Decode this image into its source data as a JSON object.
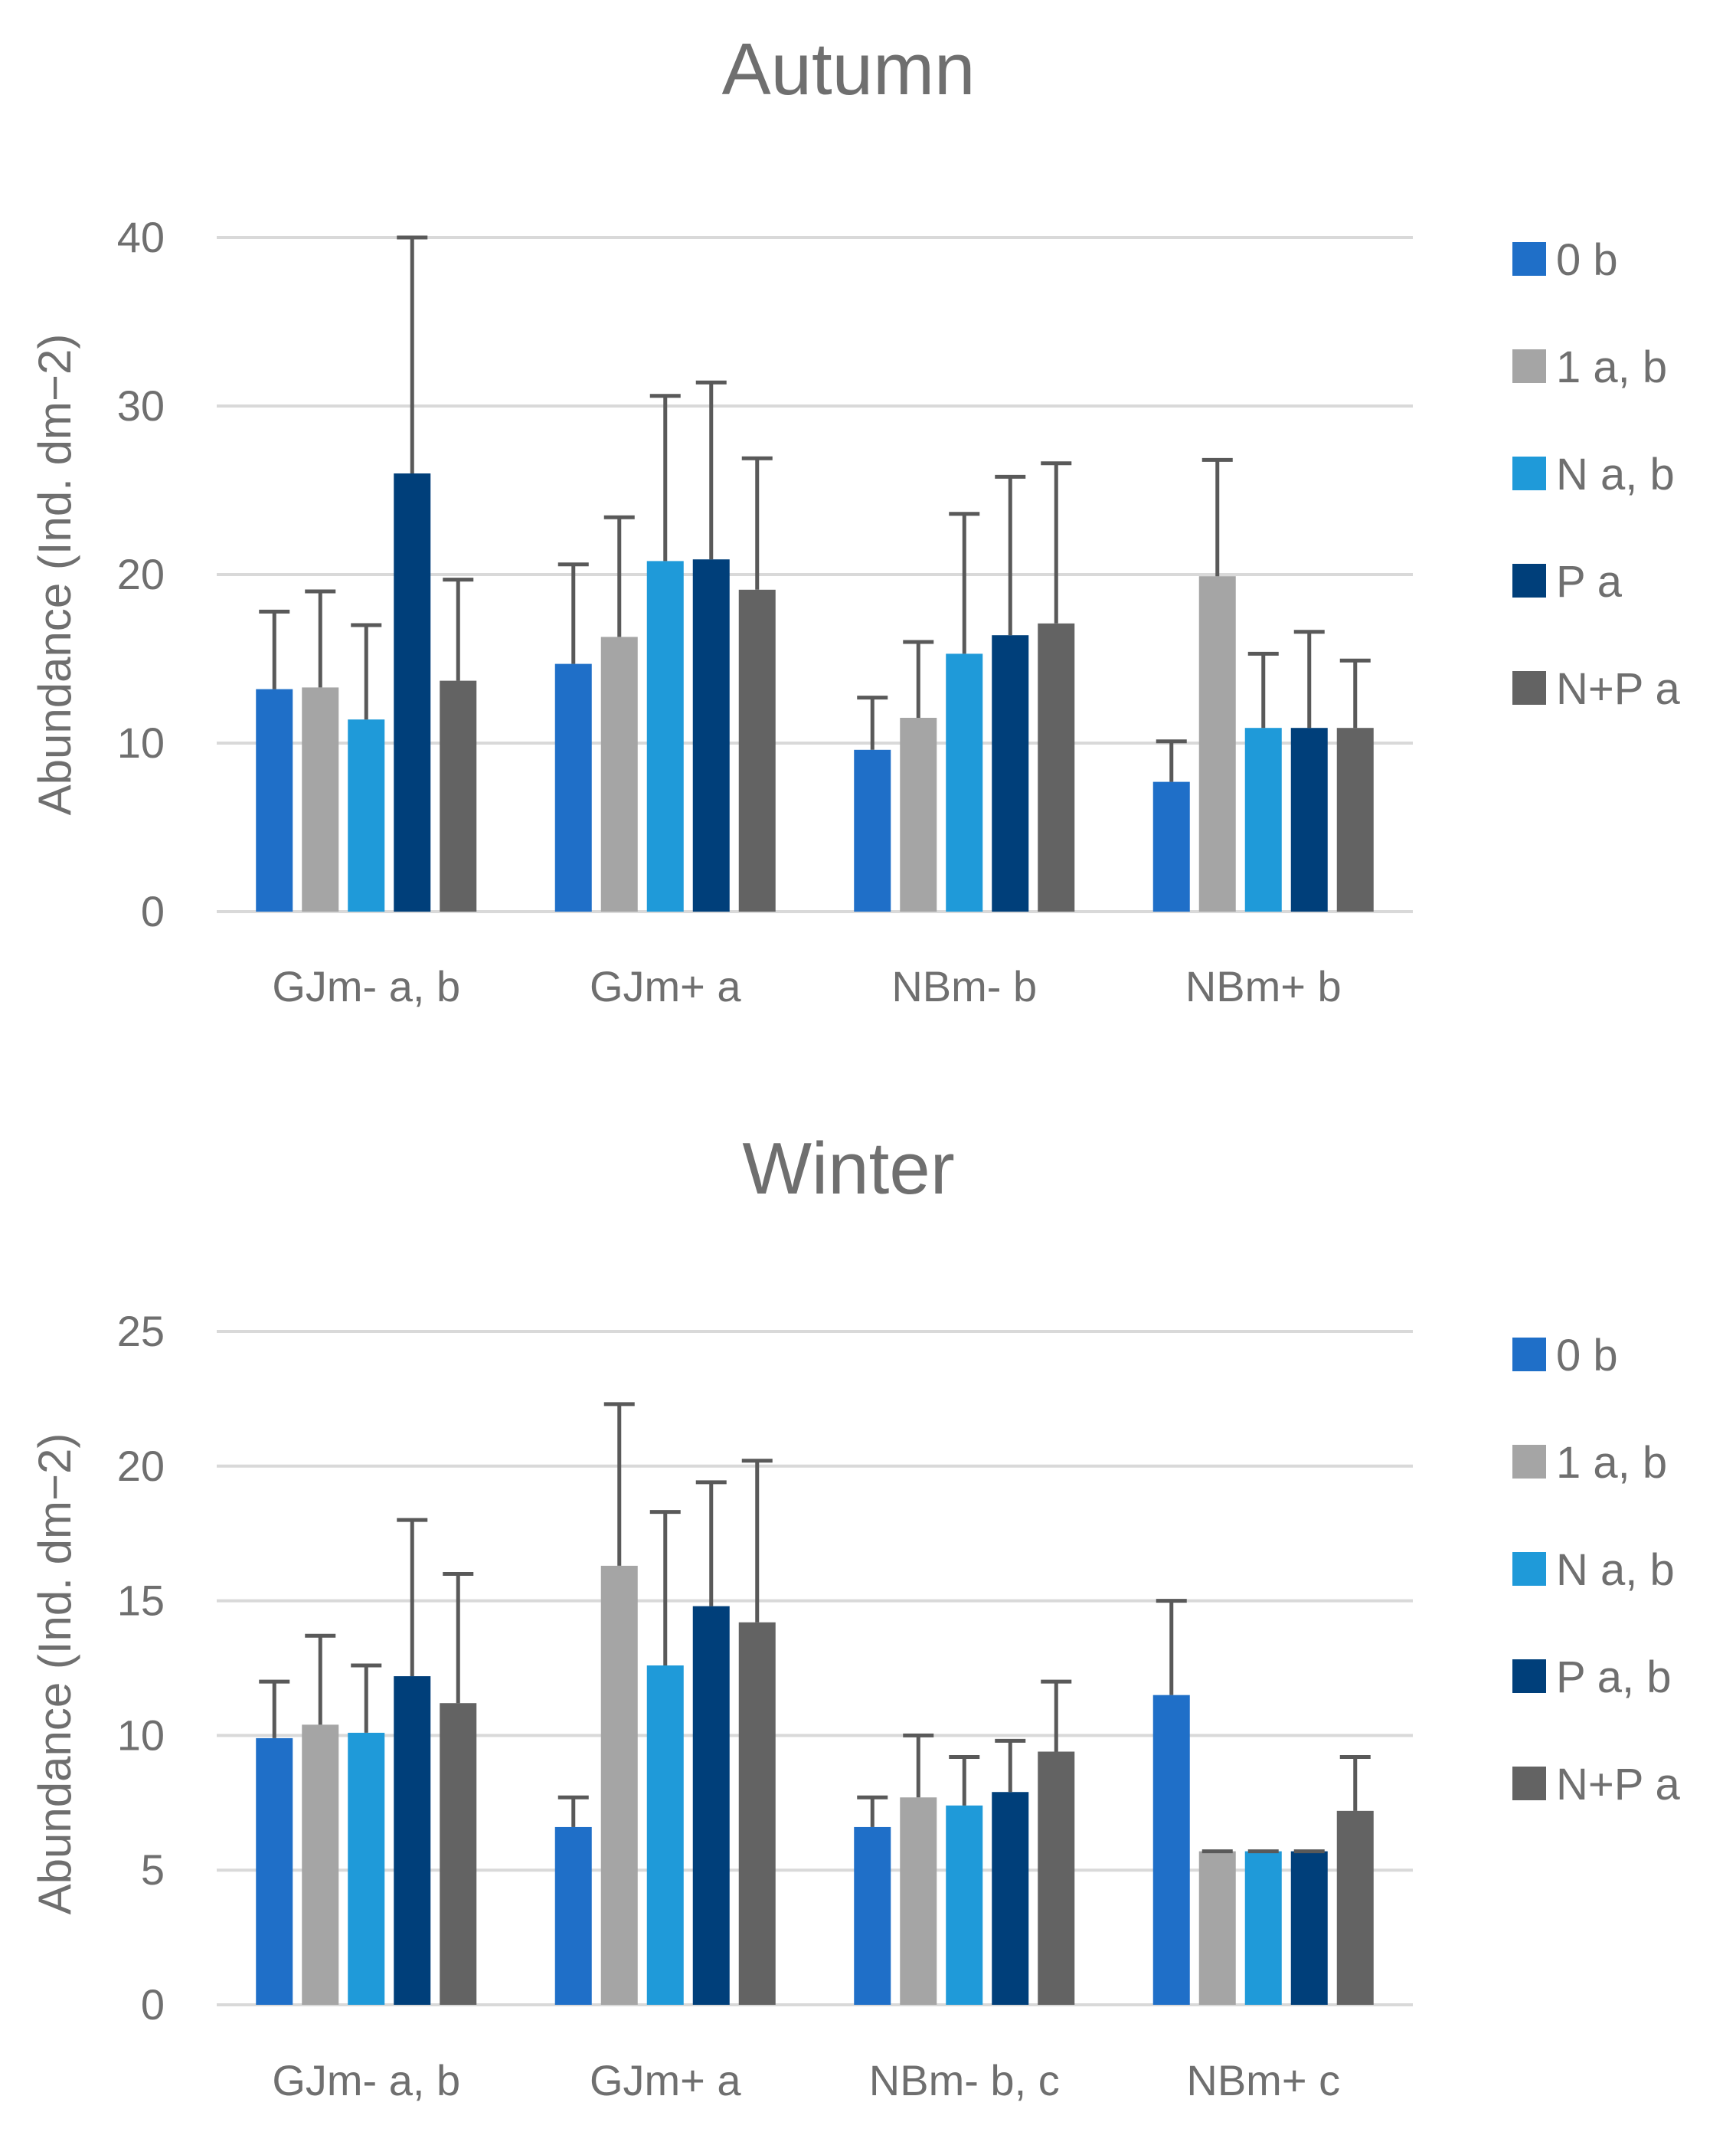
{
  "colors": {
    "gridline": "#d9d9d9",
    "error_bar": "#595959",
    "text": "#6f6f6f",
    "series": [
      "#1f6fc8",
      "#a5a5a5",
      "#1f9ad9",
      "#003f7a",
      "#636363"
    ]
  },
  "chart_data": [
    {
      "type": "bar",
      "title": "Autumn",
      "xlabel": "",
      "ylabel": "Abundance (Ind. dm−2)",
      "ylim": [
        0,
        40
      ],
      "yticks": [
        0,
        10,
        20,
        30,
        40
      ],
      "grid": true,
      "legend_position": "right",
      "categories": [
        "GJm- a, b",
        "GJm+ a",
        "NBm- b",
        "NBm+ b"
      ],
      "series": [
        {
          "name": "0 b",
          "values": [
            13.2,
            14.7,
            9.6,
            7.7
          ],
          "errors": [
            4.6,
            5.9,
            3.1,
            2.4
          ]
        },
        {
          "name": "1 a, b",
          "values": [
            13.3,
            16.3,
            11.5,
            19.9
          ],
          "errors": [
            5.7,
            7.1,
            4.5,
            6.9
          ]
        },
        {
          "name": "N a, b",
          "values": [
            11.4,
            20.8,
            15.3,
            10.9
          ],
          "errors": [
            5.6,
            9.8,
            8.3,
            4.4
          ]
        },
        {
          "name": "P a",
          "values": [
            26.0,
            20.9,
            16.4,
            10.9
          ],
          "errors": [
            14.0,
            10.5,
            9.4,
            5.7
          ]
        },
        {
          "name": "N+P a",
          "values": [
            13.7,
            19.1,
            17.1,
            10.9
          ],
          "errors": [
            6.0,
            7.8,
            9.5,
            4.0
          ]
        }
      ]
    },
    {
      "type": "bar",
      "title": "Winter",
      "xlabel": "",
      "ylabel": "Abundance (Ind. dm−2)",
      "ylim": [
        0,
        25
      ],
      "yticks": [
        0,
        5,
        10,
        15,
        20,
        25
      ],
      "grid": true,
      "legend_position": "right",
      "categories": [
        "GJm- a, b",
        "GJm+ a",
        "NBm- b, c",
        "NBm+ c"
      ],
      "series": [
        {
          "name": "0 b",
          "values": [
            9.9,
            6.6,
            6.6,
            11.5
          ],
          "errors": [
            2.1,
            1.1,
            1.1,
            3.5
          ]
        },
        {
          "name": "1 a, b",
          "values": [
            10.4,
            16.3,
            7.7,
            5.7
          ],
          "errors": [
            3.3,
            6.0,
            2.3,
            0.0
          ]
        },
        {
          "name": "N a, b",
          "values": [
            10.1,
            12.6,
            7.4,
            5.7
          ],
          "errors": [
            2.5,
            5.7,
            1.8,
            0.0
          ]
        },
        {
          "name": "P a, b",
          "values": [
            12.2,
            14.8,
            7.9,
            5.7
          ],
          "errors": [
            5.8,
            4.6,
            1.9,
            0.0
          ]
        },
        {
          "name": "N+P a",
          "values": [
            11.2,
            14.2,
            9.4,
            7.2
          ],
          "errors": [
            4.8,
            6.0,
            2.6,
            2.0
          ]
        }
      ]
    }
  ]
}
